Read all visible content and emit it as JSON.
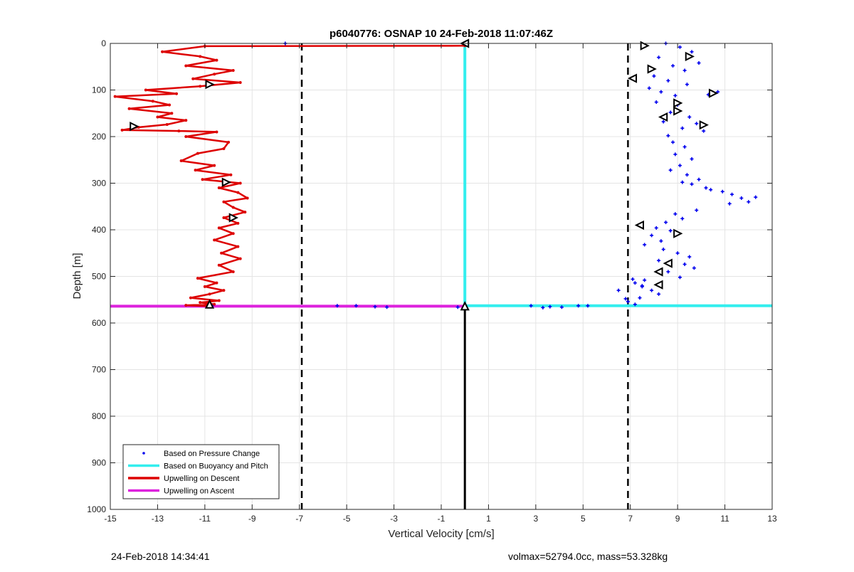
{
  "chart_data": {
    "type": "scatter",
    "title": "p6040776: OSNAP 10 24-Feb-2018 11:07:46Z",
    "xlabel": "Vertical Velocity [cm/s]",
    "ylabel": "Depth [m]",
    "xlim": [
      -15,
      13
    ],
    "ylim": [
      0,
      1000
    ],
    "y_reversed": true,
    "grid": true,
    "xticks": [
      -15,
      -13,
      -11,
      -9,
      -7,
      -5,
      -3,
      -1,
      1,
      3,
      5,
      7,
      9,
      11,
      13
    ],
    "xtick_labels": [
      "-15",
      "-13",
      "-11",
      "-9",
      "-7",
      "-5",
      "-3",
      "-1",
      "1",
      "3",
      "5",
      "7",
      "9",
      "11",
      "13"
    ],
    "yticks": [
      0,
      100,
      200,
      300,
      400,
      500,
      600,
      700,
      800,
      900,
      1000
    ],
    "ytick_labels": [
      "0",
      "100",
      "200",
      "300",
      "400",
      "500",
      "600",
      "700",
      "800",
      "900",
      "1000"
    ],
    "legend_position": "bottom-left",
    "series": [
      {
        "name": "Based on Pressure Change",
        "kind": "points",
        "color": "#0000ee",
        "x": [
          8.5,
          9.1,
          9.6,
          8.2,
          9.9,
          8.8,
          9.3,
          8.0,
          8.6,
          9.4,
          7.8,
          8.3,
          8.9,
          8.1,
          9.0,
          10.3,
          10.7,
          8.7,
          9.5,
          8.4,
          9.8,
          9.2,
          8.6,
          10.1,
          8.8,
          9.3,
          8.9,
          9.6,
          9.1,
          8.7,
          9.4,
          9.9,
          9.2,
          9.6,
          10.2,
          10.4,
          10.9,
          11.3,
          11.7,
          12.0,
          12.3,
          11.2,
          9.8,
          8.9,
          9.2,
          8.5,
          8.1,
          8.7,
          7.9,
          8.3,
          7.6,
          8.4,
          9.0,
          9.5,
          8.2,
          9.3,
          9.7,
          8.6,
          9.1,
          7.6,
          7.2,
          7.5,
          7.9,
          8.2,
          7.4,
          6.9,
          7.2,
          6.8,
          7.5,
          7.1,
          6.5,
          4.8,
          5.2,
          4.1,
          3.3,
          3.6,
          2.8,
          -3.3,
          -3.8,
          -4.6,
          -5.4,
          -0.3,
          -7.6,
          -10.7
        ],
        "y": [
          0,
          8,
          18,
          30,
          42,
          48,
          58,
          70,
          80,
          88,
          96,
          104,
          112,
          126,
          132,
          110,
          104,
          148,
          158,
          168,
          172,
          182,
          198,
          188,
          212,
          222,
          238,
          248,
          262,
          272,
          282,
          292,
          298,
          302,
          310,
          314,
          318,
          324,
          332,
          340,
          330,
          344,
          358,
          366,
          376,
          384,
          396,
          402,
          412,
          424,
          432,
          442,
          450,
          458,
          466,
          474,
          482,
          490,
          502,
          508,
          514,
          522,
          530,
          538,
          546,
          554,
          560,
          548,
          520,
          506,
          530,
          563,
          563,
          566,
          567,
          565,
          563,
          566,
          565,
          563,
          563,
          566,
          0,
          563
        ]
      },
      {
        "name": "Based on Buoyancy and Pitch",
        "kind": "line",
        "color": "#33eeee",
        "x": [
          0,
          0,
          13
        ],
        "y": [
          0,
          563,
          563
        ]
      },
      {
        "name": "Upwelling on Descent",
        "kind": "line",
        "color": "#dd0000",
        "x": [
          0,
          -11,
          -12.8,
          -11.2,
          -10.5,
          -11.8,
          -9.8,
          -10.6,
          -11.5,
          -9.5,
          -11.2,
          -13.5,
          -12.2,
          -14.8,
          -13.2,
          -12.5,
          -14.2,
          -12.4,
          -13.0,
          -11.8,
          -12.6,
          -13.8,
          -14.5,
          -12.1,
          -10.5,
          -11.8,
          -10.0,
          -10.2,
          -11.3,
          -12.0,
          -10.6,
          -11.4,
          -9.9,
          -11.1,
          -9.5,
          -10.4,
          -9.6,
          -9.2,
          -10.2,
          -9.8,
          -9.3,
          -10.2,
          -9.6,
          -10.4,
          -9.8,
          -10.6,
          -9.6,
          -10.3,
          -9.5,
          -10.4,
          -9.8,
          -11.3,
          -10.5,
          -11.0,
          -10.2,
          -10.8,
          -11.6,
          -10.4,
          -11.2,
          -10.6,
          -11.8,
          -10.8
        ],
        "y": [
          5,
          6,
          18,
          28,
          36,
          48,
          58,
          66,
          76,
          84,
          92,
          100,
          108,
          114,
          124,
          132,
          140,
          150,
          158,
          165,
          174,
          180,
          186,
          188,
          190,
          200,
          212,
          226,
          236,
          252,
          262,
          272,
          282,
          292,
          300,
          310,
          320,
          332,
          340,
          352,
          362,
          374,
          386,
          396,
          408,
          422,
          436,
          450,
          462,
          476,
          490,
          504,
          514,
          522,
          530,
          538,
          546,
          552,
          556,
          560,
          562,
          564
        ]
      },
      {
        "name": "Upwelling on Ascent",
        "kind": "line",
        "color": "#dd22dd",
        "x": [
          -15,
          0
        ],
        "y": [
          564,
          564
        ]
      }
    ],
    "reference_lines": [
      {
        "orientation": "vertical",
        "x": -6.9,
        "style": "dashed",
        "color": "#000000"
      },
      {
        "orientation": "vertical",
        "x": 6.9,
        "style": "dashed",
        "color": "#000000"
      },
      {
        "orientation": "vertical",
        "x": 0,
        "y_from": 564,
        "y_to": 1000,
        "style": "solid",
        "color": "#000000"
      }
    ],
    "markers": [
      {
        "shape": "triangle-right",
        "x": 7.6,
        "y": 5
      },
      {
        "shape": "triangle-right",
        "x": 9.5,
        "y": 28
      },
      {
        "shape": "triangle-right",
        "x": 7.9,
        "y": 55
      },
      {
        "shape": "triangle-left",
        "x": 7.1,
        "y": 75
      },
      {
        "shape": "triangle-right",
        "x": 10.5,
        "y": 107
      },
      {
        "shape": "triangle-right",
        "x": 9.0,
        "y": 128
      },
      {
        "shape": "triangle-right",
        "x": 9.0,
        "y": 145
      },
      {
        "shape": "triangle-left",
        "x": 8.4,
        "y": 158
      },
      {
        "shape": "triangle-right",
        "x": 10.1,
        "y": 175
      },
      {
        "shape": "triangle-left",
        "x": 7.4,
        "y": 390
      },
      {
        "shape": "triangle-right",
        "x": 9.0,
        "y": 408
      },
      {
        "shape": "triangle-left",
        "x": 8.6,
        "y": 472
      },
      {
        "shape": "triangle-left",
        "x": 8.2,
        "y": 490
      },
      {
        "shape": "triangle-left",
        "x": 8.2,
        "y": 518
      },
      {
        "shape": "triangle-left",
        "x": 0,
        "y": 0
      },
      {
        "shape": "triangle-right",
        "x": -10.8,
        "y": 88
      },
      {
        "shape": "triangle-right",
        "x": -14.0,
        "y": 178
      },
      {
        "shape": "triangle-right",
        "x": -10.1,
        "y": 298
      },
      {
        "shape": "triangle-right",
        "x": -9.8,
        "y": 374
      },
      {
        "shape": "triangle-up",
        "x": -10.8,
        "y": 560
      },
      {
        "shape": "triangle-up",
        "x": 0,
        "y": 564
      }
    ]
  },
  "footer": {
    "left": "24-Feb-2018 14:34:41",
    "right": "volmax=52794.0cc, mass=53.328kg"
  }
}
